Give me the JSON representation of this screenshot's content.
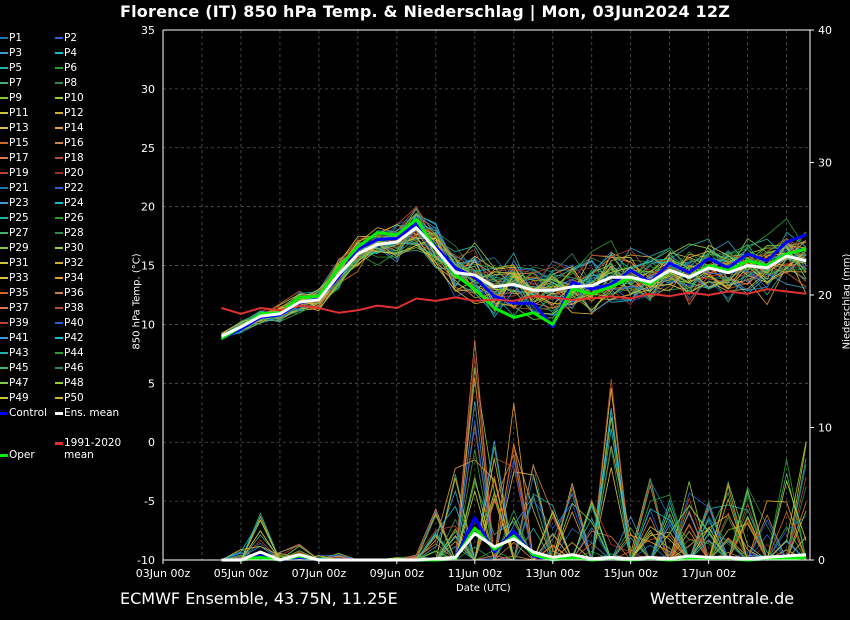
{
  "header": {
    "title": "Florence  (IT)  850 hPa Temp. & Niederschlag | Mon, 03Jun2024 12Z"
  },
  "footer": {
    "left": "ECMWF Ensemble, 43.75N, 11.25E",
    "right": "Wetterzentrale.de"
  },
  "colors": {
    "background": "#000000",
    "grid": "#555555",
    "control": "#0000ff",
    "ens_mean": "#ffffff",
    "oper": "#00ee00",
    "climate": "#e03030"
  },
  "legend": {
    "members": [
      "P1",
      "P2",
      "P3",
      "P4",
      "P5",
      "P6",
      "P7",
      "P8",
      "P9",
      "P10",
      "P11",
      "P12",
      "P13",
      "P14",
      "P15",
      "P16",
      "P17",
      "P18",
      "P19",
      "P20",
      "P21",
      "P22",
      "P23",
      "P24",
      "P25",
      "P26",
      "P27",
      "P28",
      "P29",
      "P30",
      "P31",
      "P32",
      "P33",
      "P34",
      "P35",
      "P36",
      "P37",
      "P38",
      "P39",
      "P40",
      "P41",
      "P42",
      "P43",
      "P44",
      "P45",
      "P46",
      "P47",
      "P48",
      "P49",
      "P50"
    ],
    "member_colors": [
      "#1f77b4",
      "#2b5fd8",
      "#3a9bd6",
      "#17becf",
      "#20b2aa",
      "#2ca02c",
      "#3cb371",
      "#2e8b57",
      "#7ccd3c",
      "#9acd32",
      "#c8c832",
      "#d4b030",
      "#e0c040",
      "#e8a030",
      "#d2691e",
      "#cd853f",
      "#e07850",
      "#b85030",
      "#c04030",
      "#a03020",
      "#1f77b4",
      "#2b5fd8",
      "#3a9bd6",
      "#17becf",
      "#20b2aa",
      "#2ca02c",
      "#3cb371",
      "#2e8b57",
      "#7ccd3c",
      "#9acd32",
      "#c8c832",
      "#d4b030",
      "#e0c040",
      "#e8a030",
      "#d2691e",
      "#cd853f",
      "#e07850",
      "#b85030",
      "#c04030",
      "#2b5fd8",
      "#3a9bd6",
      "#17becf",
      "#20b2aa",
      "#2ca02c",
      "#3cb371",
      "#2e8b57",
      "#7ccd3c",
      "#9acd32",
      "#c8c832",
      "#d4b030"
    ],
    "control": "Control",
    "ens_mean": "Ens. mean",
    "climate": "1991-2020 mean",
    "oper": "Oper"
  },
  "chart_data": {
    "type": "line",
    "title": "Florence  (IT)  850 hPa Temp. & Niederschlag | Mon, 03Jun2024 12Z",
    "xlabel": "Date (UTC)",
    "ylabel": "850 hPa Temp. (°C)",
    "ylabel_right": "Niederschlag (mm)",
    "x_ticks": [
      "03Jun 00z",
      "05Jun 00z",
      "07Jun 00z",
      "09Jun 00z",
      "11Jun 00z",
      "13Jun 00z",
      "15Jun 00z",
      "17Jun 00z"
    ],
    "x_range_days": [
      0,
      16.6
    ],
    "y_ticks": [
      35,
      30,
      25,
      20,
      15,
      10,
      5,
      0,
      -5,
      -10
    ],
    "ylim": [
      -10,
      35
    ],
    "y2_ticks": [
      40,
      30,
      20,
      10,
      0
    ],
    "y2lim": [
      0,
      40
    ],
    "grid": true,
    "x_days": [
      1.5,
      2,
      2.5,
      3,
      3.5,
      4,
      4.5,
      5,
      5.5,
      6,
      6.5,
      7,
      7.5,
      8,
      8.5,
      9,
      9.5,
      10,
      10.5,
      11,
      11.5,
      12,
      12.5,
      13,
      13.5,
      14,
      14.5,
      15,
      15.5,
      16,
      16.5
    ],
    "series": [
      {
        "name": "Control",
        "values": [
          8.8,
          9.6,
          10.6,
          10.8,
          11.8,
          12.2,
          14.0,
          16.4,
          17.2,
          17.3,
          18.6,
          16.6,
          14.8,
          14.0,
          12.4,
          11.8,
          11.8,
          9.8,
          13.6,
          13.0,
          13.4,
          14.6,
          13.6,
          15.2,
          14.4,
          15.6,
          14.8,
          16.0,
          15.4,
          17.0,
          17.6
        ]
      },
      {
        "name": "Ens. mean",
        "values": [
          9.0,
          9.8,
          10.7,
          10.9,
          11.9,
          12.1,
          14.2,
          16.0,
          16.8,
          17.0,
          18.2,
          16.4,
          14.4,
          14.2,
          13.2,
          13.4,
          12.9,
          12.9,
          13.2,
          13.3,
          14.0,
          14.0,
          13.6,
          14.6,
          14.0,
          14.8,
          14.4,
          15.0,
          14.8,
          15.8,
          15.4
        ]
      },
      {
        "name": "Oper",
        "values": [
          8.8,
          9.8,
          10.9,
          11.0,
          12.3,
          12.4,
          14.8,
          16.6,
          17.8,
          17.6,
          18.9,
          16.4,
          14.2,
          13.0,
          11.4,
          10.6,
          11.0,
          10.0,
          13.0,
          12.6,
          13.2,
          14.0,
          13.4,
          14.6,
          14.0,
          15.0,
          14.6,
          15.4,
          15.0,
          16.0,
          16.4
        ]
      },
      {
        "name": "1991-2020 mean",
        "values": [
          11.4,
          10.9,
          11.4,
          11.2,
          11.6,
          11.4,
          11.0,
          11.2,
          11.6,
          11.4,
          12.2,
          12.0,
          12.3,
          12.0,
          12.1,
          12.0,
          12.4,
          12.3,
          12.1,
          12.2,
          12.4,
          12.2,
          12.6,
          12.4,
          12.7,
          12.5,
          12.8,
          12.6,
          13.0,
          12.8,
          12.6
        ]
      }
    ],
    "precip": {
      "name": "Niederschlag",
      "x_days": [
        1.5,
        2,
        2.5,
        3,
        3.5,
        4,
        4.5,
        5,
        5.5,
        6,
        6.5,
        7,
        7.5,
        8,
        8.5,
        9,
        9.5,
        10,
        10.5,
        11,
        11.5,
        12,
        12.5,
        13,
        13.5,
        14,
        14.5,
        15,
        15.5,
        16,
        16.5
      ],
      "ens_mean_mm": [
        0,
        0,
        0.6,
        0,
        0.4,
        0,
        0,
        0,
        0,
        0,
        0,
        0.1,
        0.2,
        2.0,
        1.0,
        1.6,
        0.6,
        0.2,
        0.4,
        0.1,
        0.2,
        0.1,
        0.2,
        0.1,
        0.3,
        0.2,
        0.2,
        0.1,
        0.2,
        0.3,
        0.4
      ],
      "control_mm": [
        0,
        0,
        0.3,
        0,
        0.2,
        0,
        0,
        0,
        0,
        0,
        0,
        0,
        0.1,
        3.2,
        0.6,
        2.2,
        0.3,
        0,
        0.2,
        0,
        0.1,
        0,
        0.1,
        0,
        0.2,
        0.1,
        0.1,
        0,
        0.1,
        0.2,
        0.2
      ],
      "oper_mm": [
        0,
        0,
        0.2,
        0,
        0.3,
        0,
        0,
        0,
        0,
        0,
        0,
        0,
        0.1,
        2.4,
        0.8,
        1.8,
        0.4,
        0,
        0.2,
        0,
        0.1,
        0,
        0.1,
        0,
        0.1,
        0.1,
        0.1,
        0,
        0.1,
        0.1,
        0.2
      ],
      "member_max_mm": [
        0,
        0.8,
        3.8,
        0.6,
        1.2,
        0.4,
        0.5,
        0,
        0,
        0.2,
        0.4,
        4.0,
        7.6,
        16.6,
        9.8,
        12.6,
        8.2,
        4.2,
        7.0,
        5.2,
        14.4,
        4.8,
        6.4,
        5.0,
        6.0,
        4.4,
        6.0,
        5.6,
        5.0,
        7.8,
        10.6
      ]
    }
  }
}
